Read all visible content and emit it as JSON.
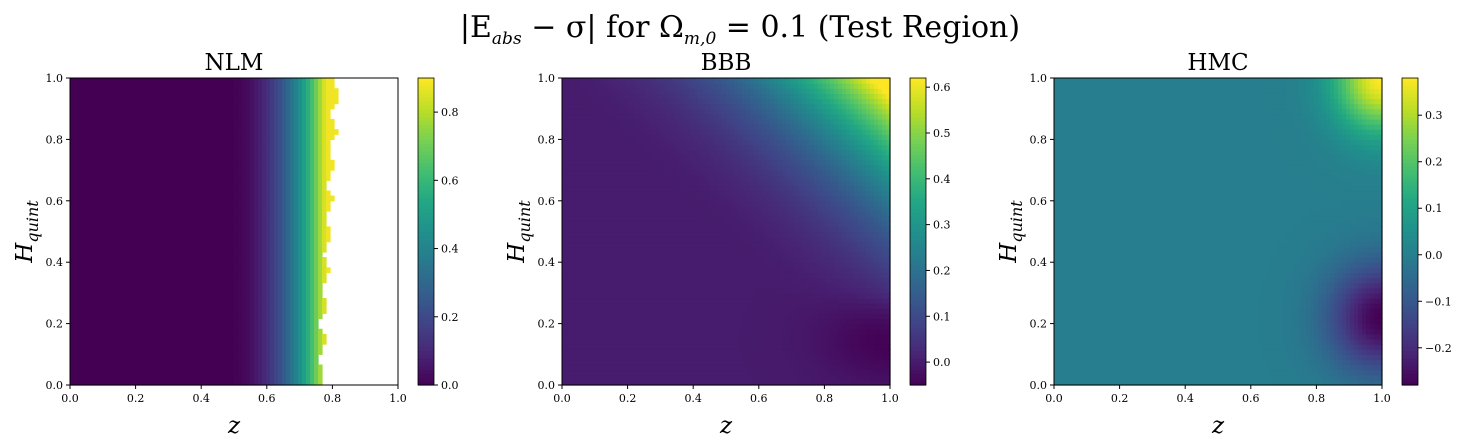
{
  "figure": {
    "title": "|E_abs − σ| for Ω_{m,0} = 0.1 (Test Region)",
    "title_parts": {
      "lhs": "|E",
      "lhs_sub": "abs",
      "mid": " − σ| for Ω",
      "omega_sub": "m,0",
      "rhs": " = 0.1 (Test Region)"
    }
  },
  "chart_data": [
    {
      "type": "heatmap",
      "title": "NLM",
      "xlabel": "z",
      "ylabel": "H_quint",
      "ylabel_main": "H",
      "ylabel_sub": "quint",
      "xlim": [
        0,
        1
      ],
      "ylim": [
        0,
        1
      ],
      "x_ticks": [
        "0.0",
        "0.2",
        "0.4",
        "0.6",
        "0.8",
        "1.0"
      ],
      "y_ticks": [
        "0.0",
        "0.2",
        "0.4",
        "0.6",
        "0.8",
        "1.0"
      ],
      "colorbar_range": [
        0.0,
        0.9
      ],
      "colorbar_ticks": [
        "0.0",
        "0.2",
        "0.4",
        "0.6",
        "0.8"
      ],
      "colormap": "viridis",
      "description_values": {
        "flat_region_value": 0.0,
        "edge_start_z": 0.55,
        "blank_beyond_z": 0.8,
        "edge_value": 0.88
      }
    },
    {
      "type": "heatmap",
      "title": "BBB",
      "xlabel": "z",
      "ylabel": "H_quint",
      "ylabel_main": "H",
      "ylabel_sub": "quint",
      "xlim": [
        0,
        1
      ],
      "ylim": [
        0,
        1
      ],
      "x_ticks": [
        "0.0",
        "0.2",
        "0.4",
        "0.6",
        "0.8",
        "1.0"
      ],
      "y_ticks": [
        "0.0",
        "0.2",
        "0.4",
        "0.6",
        "0.8",
        "1.0"
      ],
      "colorbar_range": [
        -0.05,
        0.62
      ],
      "colorbar_ticks": [
        "0.0",
        "0.1",
        "0.2",
        "0.3",
        "0.4",
        "0.5",
        "0.6"
      ],
      "colormap": "viridis",
      "description_values": {
        "base_value": 0.0,
        "top_right_value": 0.62,
        "bottom_right_value": -0.05
      }
    },
    {
      "type": "heatmap",
      "title": "HMC",
      "xlabel": "z",
      "ylabel": "H_quint",
      "ylabel_main": "H",
      "ylabel_sub": "quint",
      "xlim": [
        0,
        1
      ],
      "ylim": [
        0,
        1
      ],
      "x_ticks": [
        "0.0",
        "0.2",
        "0.4",
        "0.6",
        "0.8",
        "1.0"
      ],
      "y_ticks": [
        "0.0",
        "0.2",
        "0.4",
        "0.6",
        "0.8",
        "1.0"
      ],
      "colorbar_range": [
        -0.28,
        0.38
      ],
      "colorbar_ticks": [
        "−0.2",
        "−0.1",
        "0.0",
        "0.1",
        "0.2",
        "0.3"
      ],
      "colormap": "viridis",
      "description_values": {
        "base_value": 0.0,
        "top_right_value": 0.38,
        "bottom_right_value": -0.28
      }
    }
  ]
}
